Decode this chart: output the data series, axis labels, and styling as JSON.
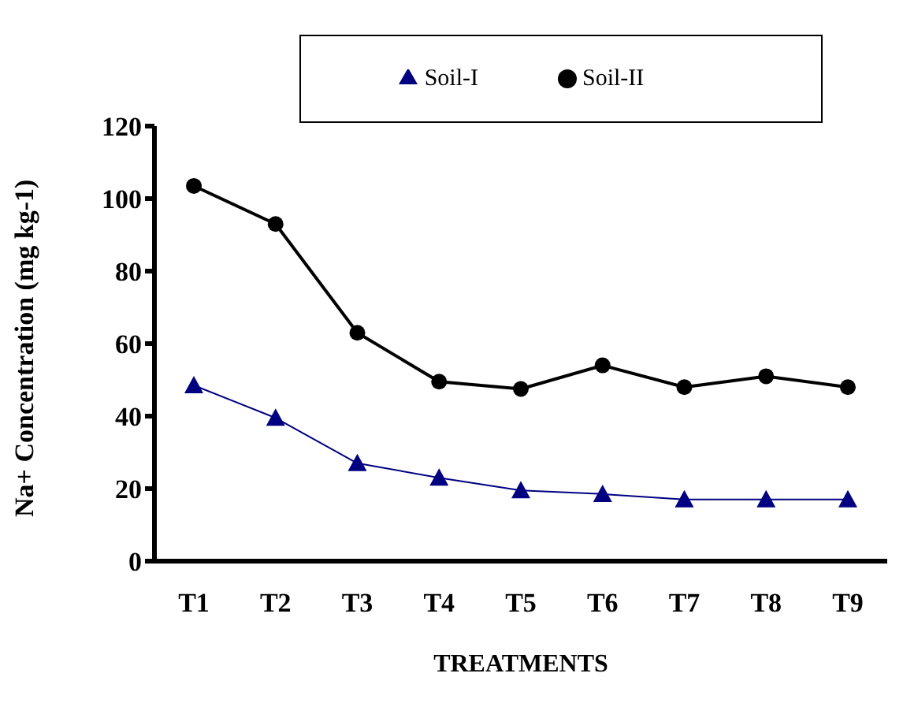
{
  "chart_data": {
    "type": "line",
    "xlabel": "TREATMENTS",
    "ylabel": "Na+ Concentration (mg kg-1)",
    "categories": [
      "T1",
      "T2",
      "T3",
      "T4",
      "T5",
      "T6",
      "T7",
      "T8",
      "T9"
    ],
    "series": [
      {
        "name": "Soil-I",
        "color": "#000080",
        "marker": "triangle",
        "values": [
          48.5,
          39.5,
          27,
          23,
          19.5,
          18.5,
          17,
          17,
          17
        ]
      },
      {
        "name": "Soil-II",
        "color": "#000000",
        "marker": "circle",
        "values": [
          103.5,
          93,
          63,
          49.5,
          47.5,
          54,
          48,
          51,
          48
        ]
      }
    ],
    "ylim": [
      0,
      120
    ],
    "yticks": [
      0,
      20,
      40,
      60,
      80,
      100,
      120
    ],
    "grid": false,
    "legend": "top"
  }
}
